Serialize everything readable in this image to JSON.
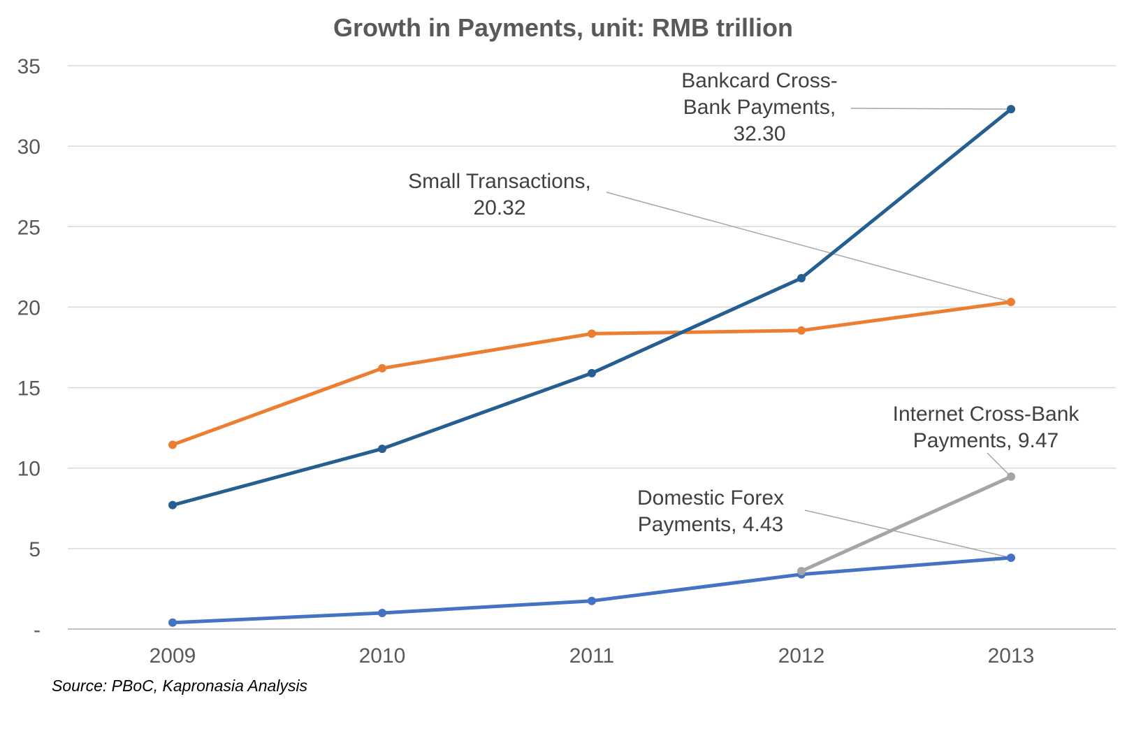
{
  "chart_data": {
    "type": "line",
    "title": "Growth in Payments, unit: RMB trillion",
    "xlabel": "",
    "ylabel": "",
    "categories": [
      "2009",
      "2010",
      "2011",
      "2012",
      "2013"
    ],
    "ylim": [
      0,
      35
    ],
    "yticks": [
      0,
      5,
      10,
      15,
      20,
      25,
      30,
      35
    ],
    "ytick_labels": [
      "-",
      "5",
      "10",
      "15",
      "20",
      "25",
      "30",
      "35"
    ],
    "grid": "horizontal",
    "legend": "none",
    "series": [
      {
        "color": "#ED7D31",
        "values": [
          11.45,
          16.2,
          18.35,
          18.55,
          20.32
        ]
      },
      {
        "color": "#255E91",
        "values": [
          7.7,
          11.2,
          15.9,
          21.8,
          32.3
        ]
      },
      {
        "color": "#4472C4",
        "values": [
          0.4,
          1.0,
          1.75,
          3.4,
          4.43
        ]
      },
      {
        "color": "#A5A5A5",
        "values": [
          null,
          null,
          null,
          3.6,
          9.47
        ]
      }
    ],
    "annotations": [
      {
        "series": 1,
        "point": 4,
        "lines": [
          "Bankcard Cross-",
          "Bank Payments,",
          "32.30"
        ]
      },
      {
        "series": 0,
        "point": 4,
        "lines": [
          "Small Transactions,",
          "20.32"
        ]
      },
      {
        "series": 3,
        "point": 4,
        "lines": [
          "Internet Cross-Bank",
          "Payments,  9.47"
        ]
      },
      {
        "series": 2,
        "point": 4,
        "lines": [
          "Domestic Forex",
          "Payments,  4.43"
        ]
      }
    ],
    "source": "Source: PBoC, Kapronasia Analysis"
  }
}
